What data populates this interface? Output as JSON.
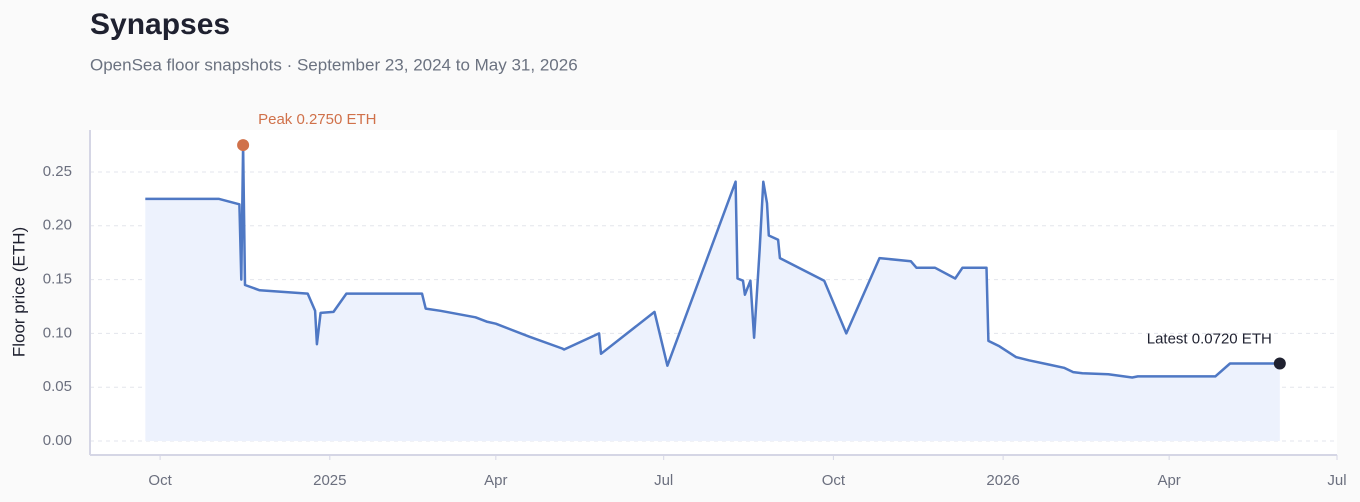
{
  "chart_data": {
    "type": "line",
    "title": "Synapses",
    "subtitle": "OpenSea floor snapshots · September 23, 2024 to May 31, 2026",
    "y_label": "Floor price (ETH)",
    "peak_label": "Peak 0.2750 ETH",
    "latest_label": "Latest 0.0720 ETH",
    "x": [
      "2024-09-23",
      "2024-11-02",
      "2024-11-13",
      "2024-11-14",
      "2024-11-15",
      "2024-11-16",
      "2024-11-24",
      "2024-12-20",
      "2024-12-24",
      "2024-12-25",
      "2024-12-27",
      "2025-01-03",
      "2025-01-10",
      "2025-02-20",
      "2025-02-22",
      "2025-03-02",
      "2025-03-21",
      "2025-03-27",
      "2025-04-01",
      "2025-04-19",
      "2025-05-07",
      "2025-05-08",
      "2025-05-27",
      "2025-05-28",
      "2025-06-26",
      "2025-07-03",
      "2025-08-09",
      "2025-08-10",
      "2025-08-13",
      "2025-08-14",
      "2025-08-17",
      "2025-08-19",
      "2025-08-22",
      "2025-08-24",
      "2025-08-26",
      "2025-08-27",
      "2025-09-01",
      "2025-09-02",
      "2025-09-26",
      "2025-10-08",
      "2025-10-26",
      "2025-11-12",
      "2025-11-15",
      "2025-11-25",
      "2025-12-06",
      "2025-12-10",
      "2025-12-23",
      "2025-12-24",
      "2025-12-30",
      "2026-01-08",
      "2026-01-15",
      "2026-01-26",
      "2026-02-03",
      "2026-02-08",
      "2026-02-13",
      "2026-02-27",
      "2026-03-12",
      "2026-03-15",
      "2026-04-26",
      "2026-05-04",
      "2026-05-31"
    ],
    "series": [
      {
        "name": "Floor price",
        "color": "#4f78c4",
        "values": [
          0.225,
          0.225,
          0.22,
          0.15,
          0.275,
          0.145,
          0.14,
          0.137,
          0.121,
          0.09,
          0.119,
          0.12,
          0.137,
          0.137,
          0.123,
          0.121,
          0.115,
          0.111,
          0.109,
          0.097,
          0.086,
          0.085,
          0.1,
          0.081,
          0.12,
          0.07,
          0.241,
          0.151,
          0.149,
          0.136,
          0.149,
          0.096,
          0.177,
          0.241,
          0.221,
          0.191,
          0.187,
          0.17,
          0.149,
          0.1,
          0.17,
          0.167,
          0.161,
          0.161,
          0.151,
          0.161,
          0.161,
          0.093,
          0.088,
          0.078,
          0.075,
          0.071,
          0.068,
          0.064,
          0.063,
          0.062,
          0.059,
          0.06,
          0.06,
          0.072,
          0.072
        ]
      }
    ],
    "area_color": "#edf2fd",
    "peak_color": "#d0714a",
    "latest_color": "#1f2130",
    "xlim": [
      "2024-08-24",
      "2026-07-01"
    ],
    "xticks": [
      {
        "value": "2024-10-01",
        "label": "Oct"
      },
      {
        "value": "2025-01-01",
        "label": "2025"
      },
      {
        "value": "2025-04-01",
        "label": "Apr"
      },
      {
        "value": "2025-07-01",
        "label": "Jul"
      },
      {
        "value": "2025-10-01",
        "label": "Oct"
      },
      {
        "value": "2026-01-01",
        "label": "2026"
      },
      {
        "value": "2026-04-01",
        "label": "Apr"
      },
      {
        "value": "2026-07-01",
        "label": "Jul"
      }
    ],
    "ylim": [
      -0.013,
      0.289
    ],
    "yticks": [
      {
        "value": 0,
        "label": "0.00"
      },
      0.05,
      {
        "value": 0.1,
        "label": "0.10"
      },
      0.15,
      {
        "value": 0.2,
        "label": "0.20"
      },
      0.25
    ],
    "grid": true
  }
}
